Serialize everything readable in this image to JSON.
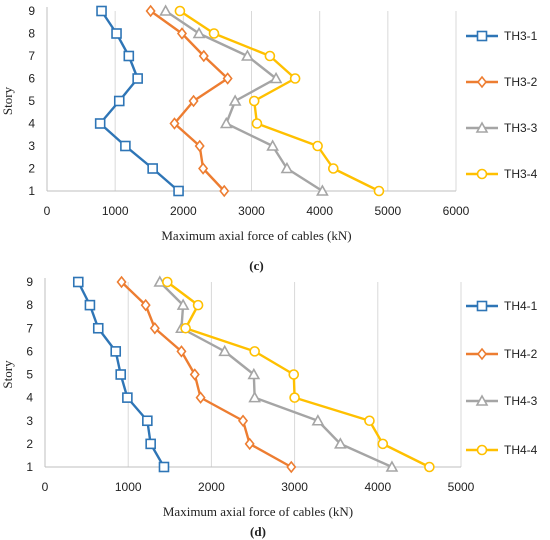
{
  "chart_data": [
    {
      "type": "line",
      "caption": "(c)",
      "xlabel": "Maximum axial force of cables (kN)",
      "ylabel": "Story",
      "xlim": [
        0,
        6000
      ],
      "xticks": [
        "0",
        "1000",
        "2000",
        "3000",
        "4000",
        "5000",
        "6000"
      ],
      "ylim": [
        1,
        9
      ],
      "yticks": [
        "1",
        "2",
        "3",
        "4",
        "5",
        "6",
        "7",
        "8",
        "9"
      ],
      "legend_position": "right",
      "series": [
        {
          "name": "TH3-1",
          "color": "#2e75b6",
          "marker": "square",
          "x": [
            1930,
            1550,
            1150,
            780,
            1060,
            1330,
            1200,
            1020,
            800
          ],
          "y": [
            1,
            2,
            3,
            4,
            5,
            6,
            7,
            8,
            9
          ]
        },
        {
          "name": "TH3-2",
          "color": "#ed7d31",
          "marker": "diamond",
          "x": [
            2600,
            2290,
            2240,
            1870,
            2150,
            2650,
            2300,
            1980,
            1520
          ],
          "y": [
            1,
            2,
            3,
            4,
            5,
            6,
            7,
            8,
            9
          ]
        },
        {
          "name": "TH3-3",
          "color": "#a5a5a5",
          "marker": "triangle",
          "x": [
            4040,
            3520,
            3310,
            2630,
            2760,
            3360,
            2940,
            2230,
            1740
          ],
          "y": [
            1,
            2,
            3,
            4,
            5,
            6,
            7,
            8,
            9
          ]
        },
        {
          "name": "TH3-4",
          "color": "#ffc000",
          "marker": "circle",
          "x": [
            4870,
            4200,
            3970,
            3080,
            3040,
            3640,
            3270,
            2450,
            1950
          ],
          "y": [
            1,
            2,
            3,
            4,
            5,
            6,
            7,
            8,
            9
          ]
        }
      ]
    },
    {
      "type": "line",
      "caption": "(d)",
      "xlabel": "Maximum axial force of cables (kN)",
      "ylabel": "Story",
      "xlim": [
        0,
        5000
      ],
      "xticks": [
        "0",
        "1000",
        "2000",
        "3000",
        "4000",
        "5000"
      ],
      "ylim": [
        1,
        9
      ],
      "yticks": [
        "1",
        "2",
        "3",
        "4",
        "5",
        "6",
        "7",
        "8",
        "9"
      ],
      "legend_position": "right",
      "series": [
        {
          "name": "TH4-1",
          "color": "#2e75b6",
          "marker": "square",
          "x": [
            1430,
            1270,
            1230,
            990,
            910,
            850,
            640,
            540,
            400
          ],
          "y": [
            1,
            2,
            3,
            4,
            5,
            6,
            7,
            8,
            9
          ]
        },
        {
          "name": "TH4-2",
          "color": "#ed7d31",
          "marker": "diamond",
          "x": [
            2960,
            2460,
            2380,
            1870,
            1800,
            1640,
            1320,
            1210,
            920
          ],
          "y": [
            1,
            2,
            3,
            4,
            5,
            6,
            7,
            8,
            9
          ]
        },
        {
          "name": "TH4-3",
          "color": "#a5a5a5",
          "marker": "triangle",
          "x": [
            4170,
            3550,
            3280,
            2520,
            2510,
            2160,
            1640,
            1660,
            1380
          ],
          "y": [
            1,
            2,
            3,
            4,
            5,
            6,
            7,
            8,
            9
          ]
        },
        {
          "name": "TH4-4",
          "color": "#ffc000",
          "marker": "circle",
          "x": [
            4620,
            4060,
            3900,
            3000,
            2990,
            2520,
            1690,
            1840,
            1470
          ],
          "y": [
            1,
            2,
            3,
            4,
            5,
            6,
            7,
            8,
            9
          ]
        }
      ]
    }
  ]
}
